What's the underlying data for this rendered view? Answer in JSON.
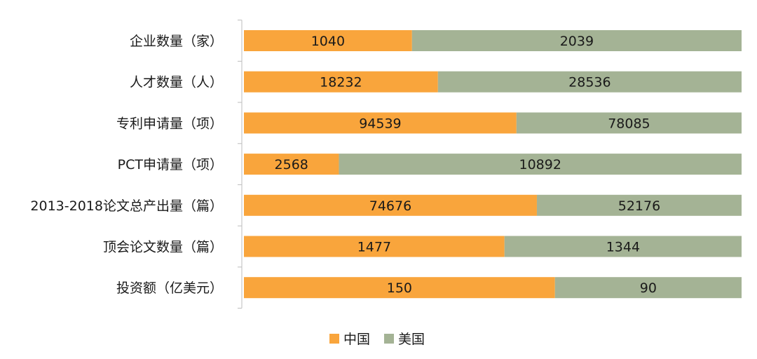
{
  "chart_data": {
    "type": "bar",
    "orientation": "horizontal",
    "stacked": "percent",
    "categories": [
      "企业数量（家）",
      "人才数量（人）",
      "专利申请量（项）",
      "PCT申请量（项）",
      "2013-2018论文总产出量（篇）",
      "顶会论文数量（篇）",
      "投资额（亿美元）"
    ],
    "series": [
      {
        "name": "中国",
        "color": "#F9A53C",
        "values": [
          1040,
          18232,
          94539,
          2568,
          74676,
          1477,
          150
        ]
      },
      {
        "name": "美国",
        "color": "#A4B395",
        "values": [
          2039,
          28536,
          78085,
          10892,
          52176,
          1344,
          90
        ]
      }
    ],
    "legend_position": "bottom",
    "grid": false,
    "title": "",
    "xlabel": "",
    "ylabel": ""
  }
}
